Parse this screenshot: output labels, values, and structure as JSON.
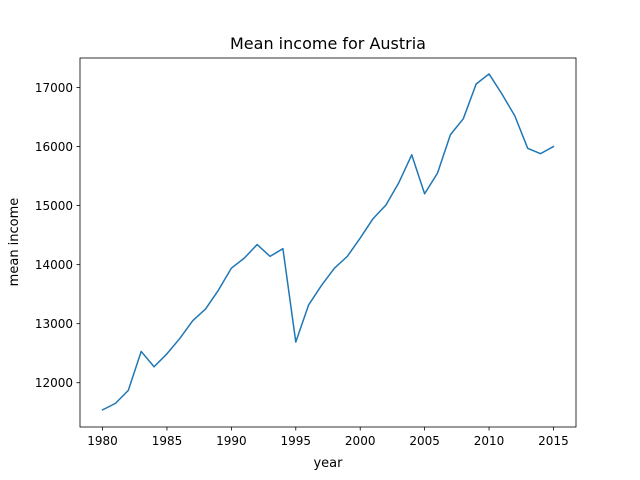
{
  "chart_data": {
    "type": "line",
    "title": "Mean income for Austria",
    "xlabel": "year",
    "ylabel": "mean income",
    "xlim": [
      1978.25,
      2016.75
    ],
    "ylim": [
      11250,
      17500
    ],
    "x_ticks": [
      1980,
      1985,
      1990,
      1995,
      2000,
      2005,
      2010,
      2015
    ],
    "y_ticks": [
      12000,
      13000,
      14000,
      15000,
      16000,
      17000
    ],
    "grid": false,
    "legend": "none",
    "series": [
      {
        "color": "#1f77b4",
        "x": [
          1980,
          1981,
          1982,
          1983,
          1984,
          1985,
          1986,
          1987,
          1988,
          1989,
          1990,
          1991,
          1992,
          1993,
          1994,
          1995,
          1996,
          1997,
          1998,
          1999,
          2000,
          2001,
          2002,
          2003,
          2004,
          2005,
          2006,
          2007,
          2008,
          2009,
          2010,
          2011,
          2012,
          2013,
          2014,
          2015
        ],
        "values": [
          11540,
          11650,
          11870,
          12530,
          12270,
          12490,
          12750,
          13050,
          13250,
          13570,
          13940,
          14110,
          14340,
          14140,
          14270,
          12690,
          13320,
          13650,
          13940,
          14140,
          14450,
          14780,
          15010,
          15390,
          15860,
          15200,
          15550,
          16200,
          16470,
          17060,
          17230,
          16890,
          16520,
          15970,
          15880,
          16000
        ]
      }
    ]
  }
}
